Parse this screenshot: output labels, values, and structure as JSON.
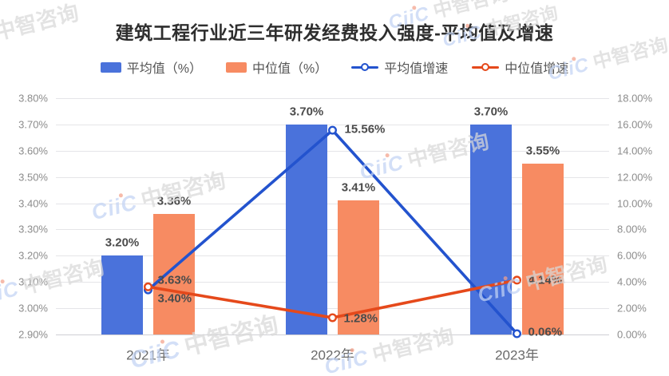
{
  "title": "建筑工程行业近三年研发经费投入强度-平均值及增速",
  "watermark_logo": "CiiC",
  "watermark_name": "中智咨询",
  "legend": {
    "items": [
      {
        "label": "平均值（%）",
        "marker": "bar",
        "color": "#4a72db"
      },
      {
        "label": "中位值（%）",
        "marker": "bar",
        "color": "#f78b62"
      },
      {
        "label": "平均值增速",
        "marker": "line",
        "color": "#2353ce"
      },
      {
        "label": "中位值增速",
        "marker": "line",
        "color": "#e5491b"
      }
    ]
  },
  "chart_data": {
    "type": "combo-bar-line",
    "title": "建筑工程行业近三年研发经费投入强度-平均值及增速",
    "categories": [
      "2021年",
      "2022年",
      "2023年"
    ],
    "series": [
      {
        "id": "average",
        "name": "平均值（%）",
        "type": "bar",
        "axis": "left",
        "color": "#4a72db",
        "values": [
          3.2,
          3.7,
          3.7
        ],
        "labels": [
          "3.20%",
          "3.70%",
          "3.70%"
        ]
      },
      {
        "id": "median",
        "name": "中位值（%）",
        "type": "bar",
        "axis": "left",
        "color": "#f78b62",
        "values": [
          3.36,
          3.41,
          3.55
        ],
        "labels": [
          "3.36%",
          "3.41%",
          "3.55%"
        ]
      },
      {
        "id": "average-growth",
        "name": "平均值增速",
        "type": "line",
        "axis": "right",
        "color": "#2353ce",
        "values": [
          3.4,
          15.56,
          0.06
        ],
        "labels": [
          "3.40%",
          "15.56%",
          "0.06%"
        ],
        "label_dx": [
          12,
          15,
          14
        ],
        "label_dy": [
          11,
          -1,
          -2
        ]
      },
      {
        "id": "median-growth",
        "name": "中位值增速",
        "type": "line",
        "axis": "right",
        "color": "#e5491b",
        "values": [
          3.63,
          1.28,
          4.14
        ],
        "labels": [
          "3.63%",
          "1.28%",
          "4.14%"
        ],
        "label_dx": [
          12,
          14,
          14
        ],
        "label_dy": [
          -8,
          1,
          0
        ]
      }
    ],
    "left_axis": {
      "min": 2.9,
      "max": 3.8,
      "step": 0.1,
      "ticks": [
        "3.80%",
        "3.70%",
        "3.60%",
        "3.50%",
        "3.40%",
        "3.30%",
        "3.20%",
        "3.10%",
        "3.00%",
        "2.90%"
      ]
    },
    "right_axis": {
      "min": 0,
      "max": 18,
      "step": 2,
      "ticks": [
        "18.00%",
        "16.00%",
        "14.00%",
        "12.00%",
        "10.00%",
        "8.00%",
        "6.00%",
        "4.00%",
        "2.00%",
        "0.00%"
      ]
    },
    "grid": true,
    "legend_position": "top",
    "xlabel": "",
    "ylabel": ""
  }
}
